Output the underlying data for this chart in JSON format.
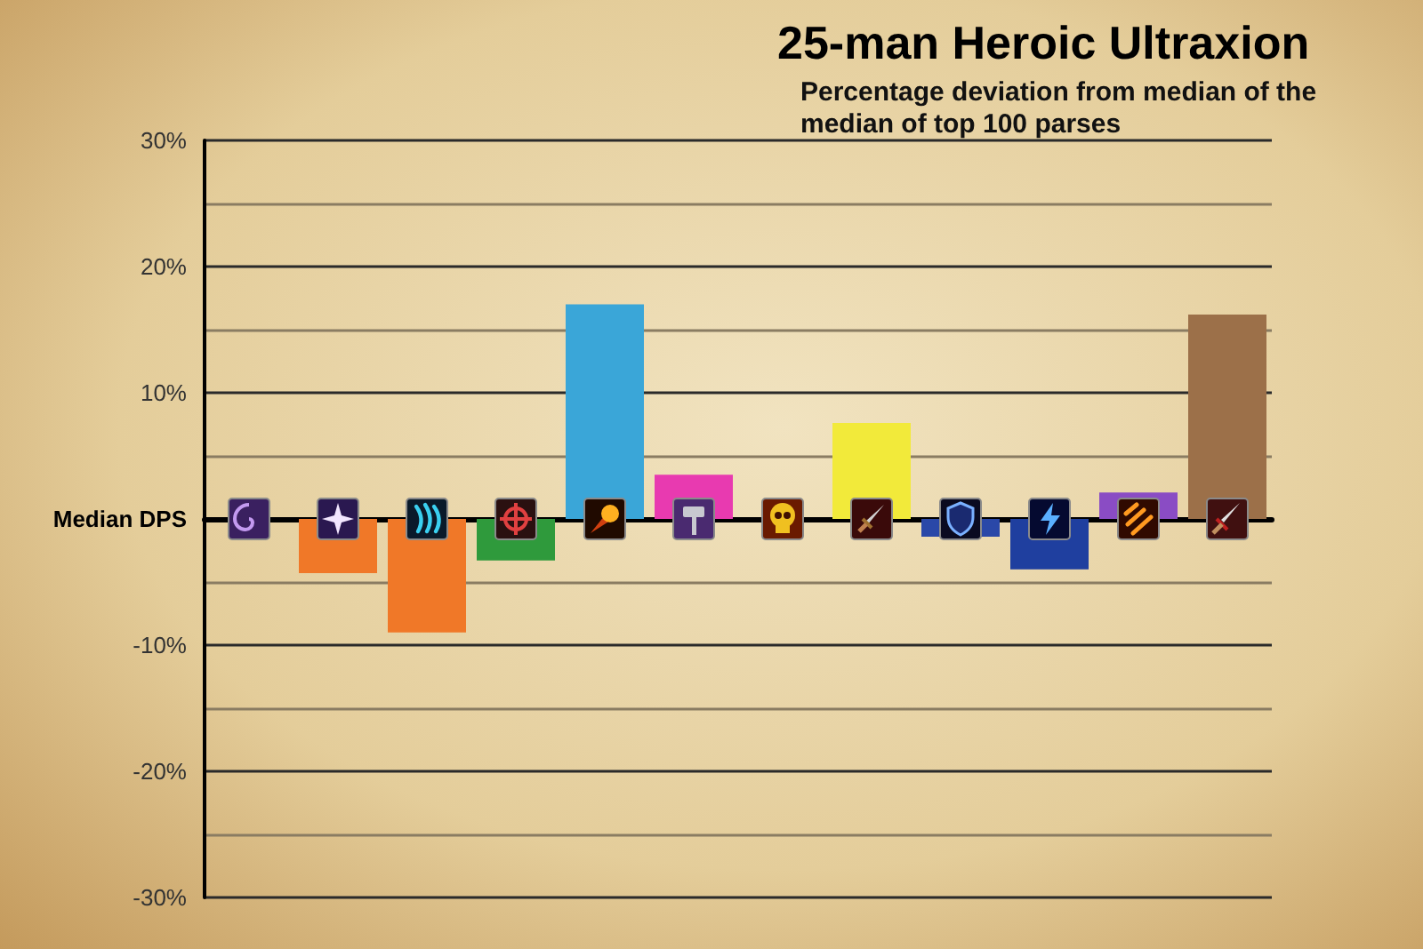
{
  "chart_data": {
    "type": "bar",
    "title": "25-man Heroic Ultraxion",
    "subtitle": "Percentage deviation from median of the median of top 100 parses",
    "categories": [
      null,
      null,
      null,
      null,
      null,
      null,
      null,
      null,
      null,
      null,
      null,
      null
    ],
    "values": [
      null,
      -4.3,
      -9.0,
      -3.3,
      17.0,
      3.5,
      null,
      7.6,
      -1.4,
      -4.0,
      2.1,
      16.2
    ],
    "colors": [
      null,
      "#f07828",
      "#f07828",
      "#2f9a3c",
      "#3aa6d8",
      "#e83ab0",
      null,
      "#f2ea3a",
      "#2a48a8",
      "#1f3f9f",
      "#8a4cc4",
      "#9c7049"
    ],
    "ylim": [
      -30,
      30
    ],
    "yticks": [
      {
        "value": -30,
        "label": "-30%"
      },
      {
        "value": -25,
        "label": null
      },
      {
        "value": -20,
        "label": "-20%"
      },
      {
        "value": -15,
        "label": null
      },
      {
        "value": -10,
        "label": "-10%"
      },
      {
        "value": -5,
        "label": null
      },
      {
        "value": 0,
        "label": "Median DPS"
      },
      {
        "value": 5,
        "label": null
      },
      {
        "value": 10,
        "label": "10%"
      },
      {
        "value": 15,
        "label": null
      },
      {
        "value": 20,
        "label": "20%"
      },
      {
        "value": 25,
        "label": null
      },
      {
        "value": 30,
        "label": "30%"
      }
    ],
    "grid": "y"
  }
}
